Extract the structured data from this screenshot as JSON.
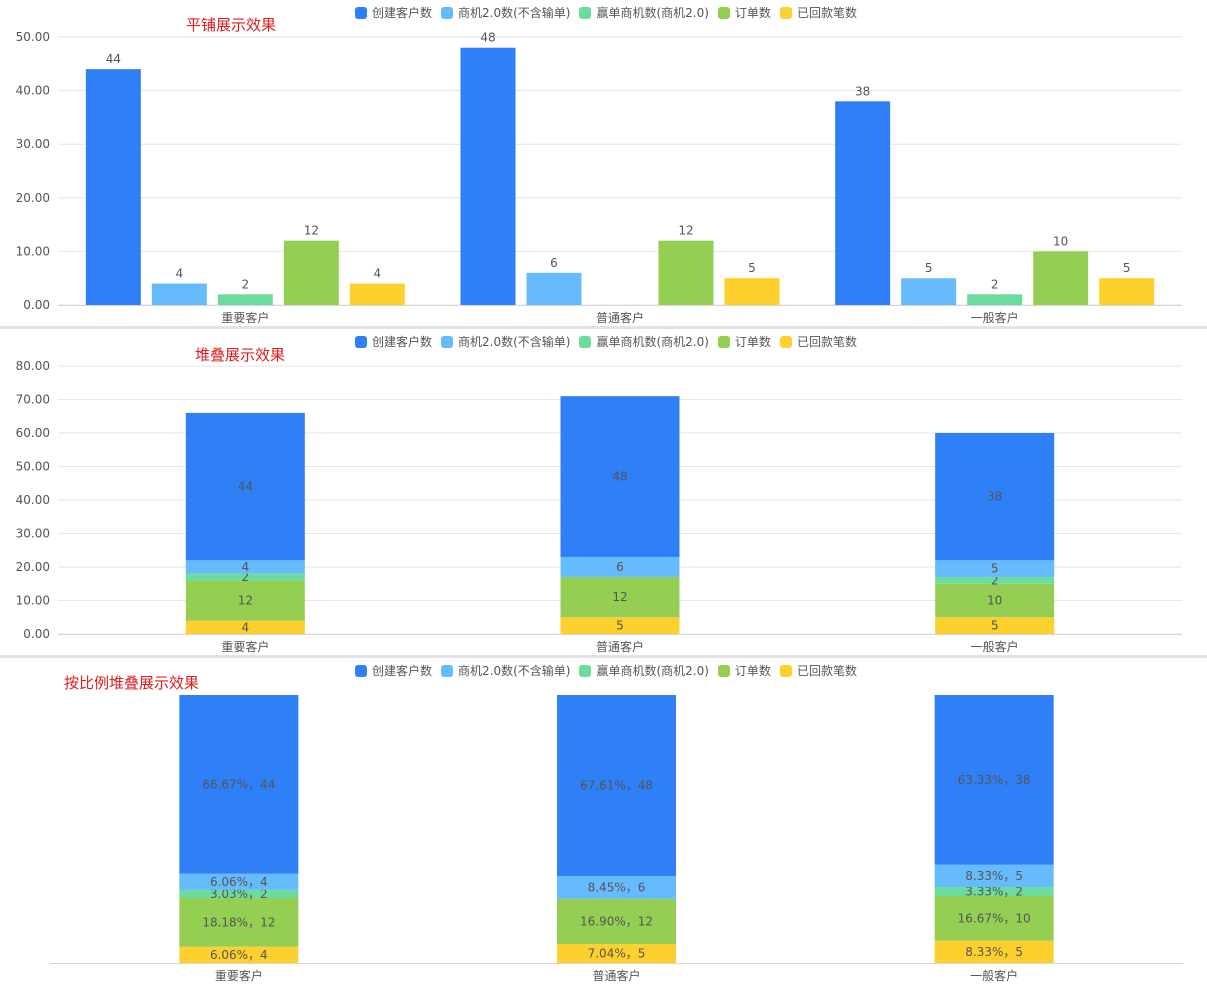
{
  "colors": {
    "series": [
      "#2f7ff7",
      "#66bbfd",
      "#6cdc9e",
      "#94cf54",
      "#fdd02e"
    ],
    "title": "#e01c1c",
    "grid": "#e6e6e6",
    "axis_text": "#555555",
    "label_text": "#555555"
  },
  "chart_data": [
    {
      "type": "bar",
      "mode": "grouped",
      "title": "平铺展示效果",
      "categories": [
        "重要客户",
        "普通客户",
        "一般客户"
      ],
      "series": [
        {
          "name": "创建客户数",
          "values": [
            44,
            48,
            38
          ]
        },
        {
          "name": "商机2.0数(不含输单)",
          "values": [
            4,
            6,
            5
          ]
        },
        {
          "name": "赢单商机数(商机2.0)",
          "values": [
            2,
            0,
            2
          ]
        },
        {
          "name": "订单数",
          "values": [
            12,
            12,
            10
          ]
        },
        {
          "name": "已回款笔数",
          "values": [
            4,
            5,
            5
          ]
        }
      ],
      "ylim": [
        0,
        50
      ],
      "yticks": [
        "0.00",
        "10.00",
        "20.00",
        "30.00",
        "40.00",
        "50.00"
      ],
      "grid": true,
      "legend": "top-center"
    },
    {
      "type": "bar",
      "mode": "stacked",
      "title": "堆叠展示效果",
      "categories": [
        "重要客户",
        "普通客户",
        "一般客户"
      ],
      "series": [
        {
          "name": "创建客户数",
          "values": [
            44,
            48,
            38
          ]
        },
        {
          "name": "商机2.0数(不含输单)",
          "values": [
            4,
            6,
            5
          ]
        },
        {
          "name": "赢单商机数(商机2.0)",
          "values": [
            2,
            0,
            2
          ]
        },
        {
          "name": "订单数",
          "values": [
            12,
            12,
            10
          ]
        },
        {
          "name": "已回款笔数",
          "values": [
            4,
            5,
            5
          ]
        }
      ],
      "ylim": [
        0,
        80
      ],
      "yticks": [
        "0.00",
        "10.00",
        "20.00",
        "30.00",
        "40.00",
        "50.00",
        "60.00",
        "70.00",
        "80.00"
      ],
      "grid": true,
      "legend": "top-center"
    },
    {
      "type": "bar",
      "mode": "percent-stacked",
      "title": "按比例堆叠展示效果",
      "categories": [
        "重要客户",
        "普通客户",
        "一般客户"
      ],
      "series": [
        {
          "name": "创建客户数",
          "values": [
            44,
            48,
            38
          ],
          "labels": [
            "66.67%，44",
            "67.61%，48",
            "63.33%，38"
          ]
        },
        {
          "name": "商机2.0数(不含输单)",
          "values": [
            4,
            6,
            5
          ],
          "labels": [
            "6.06%，4",
            "8.45%，6",
            "8.33%，5"
          ]
        },
        {
          "name": "赢单商机数(商机2.0)",
          "values": [
            2,
            0,
            2
          ],
          "labels": [
            "3.03%，2",
            "",
            "3.33%，2"
          ]
        },
        {
          "name": "订单数",
          "values": [
            12,
            12,
            10
          ],
          "labels": [
            "18.18%，12",
            "16.90%，12",
            "16.67%，10"
          ]
        },
        {
          "name": "已回款笔数",
          "values": [
            4,
            5,
            5
          ],
          "labels": [
            "6.06%，4",
            "7.04%，5",
            "8.33%，5"
          ]
        }
      ],
      "ylim": [
        0,
        100
      ],
      "grid": false,
      "legend": "top-center"
    }
  ]
}
